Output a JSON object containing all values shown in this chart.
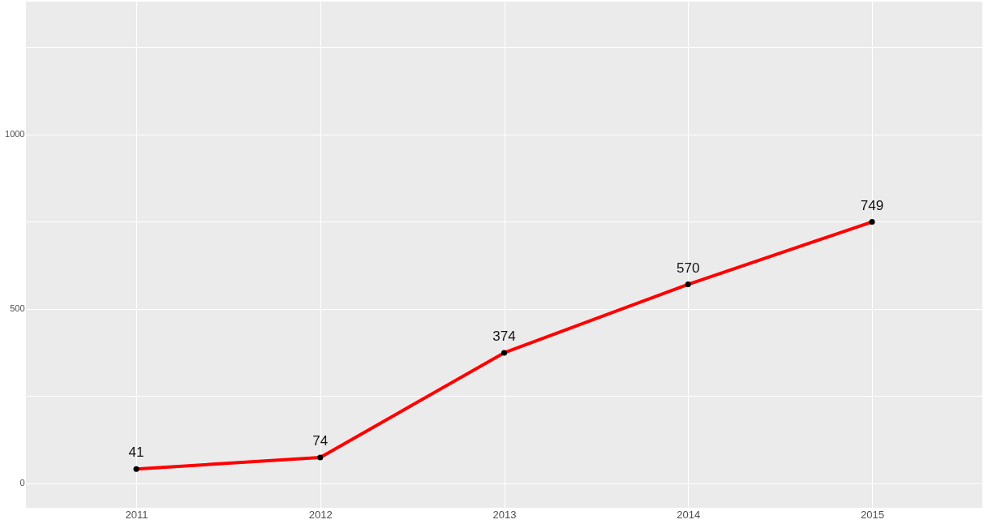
{
  "chart_data": {
    "type": "line",
    "x": [
      2011,
      2012,
      2013,
      2014,
      2015
    ],
    "series": [
      {
        "color": "#ff0000",
        "values": [
          41,
          74,
          374,
          570,
          749
        ],
        "marker": "none"
      },
      {
        "type": "scatter",
        "color": "#000000",
        "values": [
          41,
          74,
          374,
          570,
          749
        ],
        "marker": "circle",
        "value_labels": [
          "41",
          "74",
          "374",
          "570",
          "749"
        ]
      }
    ],
    "xlim": [
      2010.4,
      2015.6
    ],
    "xticks": [
      2011,
      2012,
      2013,
      2014,
      2015
    ],
    "ylim": [
      -70,
      1380
    ],
    "yticks": [
      0,
      {
        "value": 250,
        "label": null
      },
      500,
      {
        "value": 750,
        "label": null
      },
      1000,
      {
        "value": 1250,
        "label": null
      }
    ],
    "grid": true,
    "line_style": "solid"
  }
}
